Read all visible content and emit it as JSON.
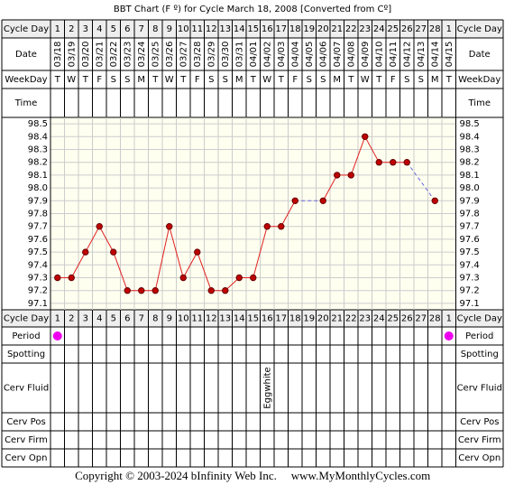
{
  "chart_data": {
    "type": "line",
    "title": "BBT Chart (F º) for Cycle March 18, 2008  [Converted from Cº]",
    "categories": [
      "1",
      "2",
      "3",
      "4",
      "5",
      "6",
      "7",
      "8",
      "9",
      "10",
      "11",
      "12",
      "13",
      "14",
      "15",
      "16",
      "17",
      "18",
      "19",
      "20",
      "21",
      "22",
      "23",
      "24",
      "25",
      "26",
      "27",
      "28",
      "1"
    ],
    "dates": [
      "03/18",
      "03/19",
      "03/20",
      "03/21",
      "03/22",
      "03/23",
      "03/24",
      "03/25",
      "03/26",
      "03/27",
      "03/28",
      "03/29",
      "03/30",
      "03/31",
      "04/01",
      "04/02",
      "04/03",
      "04/04",
      "04/05",
      "04/06",
      "04/07",
      "04/08",
      "04/09",
      "04/10",
      "04/11",
      "04/12",
      "04/13",
      "04/14",
      "04/15"
    ],
    "weekdays": [
      "T",
      "W",
      "T",
      "F",
      "S",
      "S",
      "M",
      "T",
      "W",
      "T",
      "F",
      "S",
      "S",
      "M",
      "T",
      "W",
      "T",
      "F",
      "S",
      "S",
      "M",
      "T",
      "W",
      "T",
      "F",
      "S",
      "S",
      "M",
      "T"
    ],
    "values": [
      97.3,
      97.3,
      97.5,
      97.7,
      97.5,
      97.2,
      97.2,
      97.2,
      97.7,
      97.3,
      97.5,
      97.2,
      97.2,
      97.3,
      97.3,
      97.7,
      97.7,
      97.9,
      null,
      97.9,
      98.1,
      98.1,
      98.4,
      98.2,
      98.2,
      98.2,
      null,
      97.9,
      null
    ],
    "color": "#e02020",
    "marker_color": "#c00000",
    "gap_color": "#6666dd",
    "ylim": [
      97.05,
      98.55
    ],
    "yticks": [
      98.5,
      98.4,
      98.3,
      98.2,
      98.1,
      {
        "value": 98,
        "label": "98.0"
      },
      97.9,
      97.8,
      97.7,
      97.6,
      97.5,
      97.4,
      97.3,
      97.2,
      97.1
    ],
    "grid": true,
    "period": [
      true,
      false,
      false,
      false,
      false,
      false,
      false,
      false,
      false,
      false,
      false,
      false,
      false,
      false,
      false,
      false,
      false,
      false,
      false,
      false,
      false,
      false,
      false,
      false,
      false,
      false,
      false,
      false,
      true
    ],
    "period_color": "#ee00ee",
    "cerv_fluid": [
      null,
      null,
      null,
      null,
      null,
      null,
      null,
      null,
      null,
      null,
      null,
      null,
      null,
      null,
      null,
      "Eggwhite",
      null,
      null,
      null,
      null,
      null,
      null,
      null,
      null,
      null,
      null,
      null,
      null,
      null
    ]
  },
  "row_labels": {
    "cycle_day": "Cycle Day",
    "date": "Date",
    "weekday": "WeekDay",
    "time": "Time",
    "period": "Period",
    "spotting": "Spotting",
    "cerv_fluid": "Cerv Fluid",
    "cerv_pos": "Cerv Pos",
    "cerv_firm": "Cerv Firm",
    "cerv_opn": "Cerv Opn"
  },
  "footer": {
    "copyright": "Copyright © 2003-2024 bInfinity Web Inc.",
    "site": "www.MyMonthlyCycles.com"
  }
}
